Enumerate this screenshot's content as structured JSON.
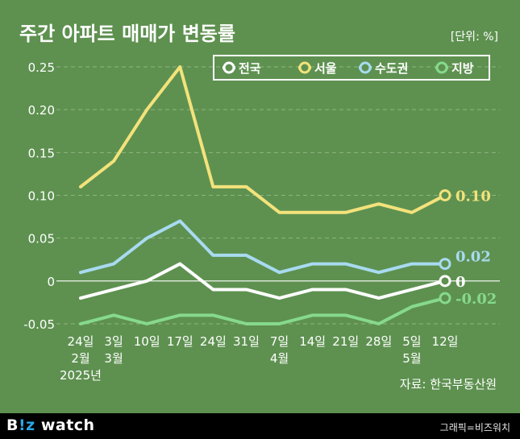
{
  "title": "주간 아파트 매매가 변동률",
  "unit_label": "[단위: %]",
  "source": "자료: 한국부동산원",
  "footer": {
    "brand_prefix": "B",
    "brand_accent": "!z",
    "brand_suffix": " watch",
    "credit": "그래픽=비즈워치"
  },
  "colors": {
    "background": "#5e9150",
    "grid": "#8fb57f",
    "text": "#ffffff",
    "national": "#ffffff",
    "seoul": "#f3e27b",
    "capital": "#a8daf0",
    "regional": "#86d98d"
  },
  "chart_data": {
    "type": "line",
    "x_labels": [
      [
        "24일",
        "2월",
        "2025년"
      ],
      [
        "3일",
        "3월"
      ],
      [
        "10일"
      ],
      [
        "17일"
      ],
      [
        "24일"
      ],
      [
        "31일"
      ],
      [
        "7일",
        "4월"
      ],
      [
        "14일"
      ],
      [
        "21일"
      ],
      [
        "28일"
      ],
      [
        "5일",
        "5월"
      ],
      [
        "12일"
      ]
    ],
    "yticks": [
      "0.25",
      "0.20",
      "0.15",
      "0.10",
      "0.05",
      "0",
      "-0.05"
    ],
    "ylim": [
      -0.05,
      0.25
    ],
    "grid": true,
    "legend_position": "top-right",
    "series": [
      {
        "name": "전국",
        "color_key": "national",
        "values": [
          -0.02,
          -0.01,
          0.0,
          0.02,
          -0.01,
          -0.01,
          -0.02,
          -0.01,
          -0.01,
          -0.02,
          -0.01,
          0.0
        ],
        "end_label": "0"
      },
      {
        "name": "서울",
        "color_key": "seoul",
        "values": [
          0.11,
          0.14,
          0.2,
          0.25,
          0.11,
          0.11,
          0.08,
          0.08,
          0.08,
          0.09,
          0.08,
          0.1
        ],
        "end_label": "0.10"
      },
      {
        "name": "수도권",
        "color_key": "capital",
        "values": [
          0.01,
          0.02,
          0.05,
          0.07,
          0.03,
          0.03,
          0.01,
          0.02,
          0.02,
          0.01,
          0.02,
          0.02
        ],
        "end_label": "0.02"
      },
      {
        "name": "지방",
        "color_key": "regional",
        "values": [
          -0.05,
          -0.04,
          -0.05,
          -0.04,
          -0.04,
          -0.05,
          -0.05,
          -0.04,
          -0.04,
          -0.05,
          -0.03,
          -0.02
        ],
        "end_label": "-0.02"
      }
    ]
  }
}
